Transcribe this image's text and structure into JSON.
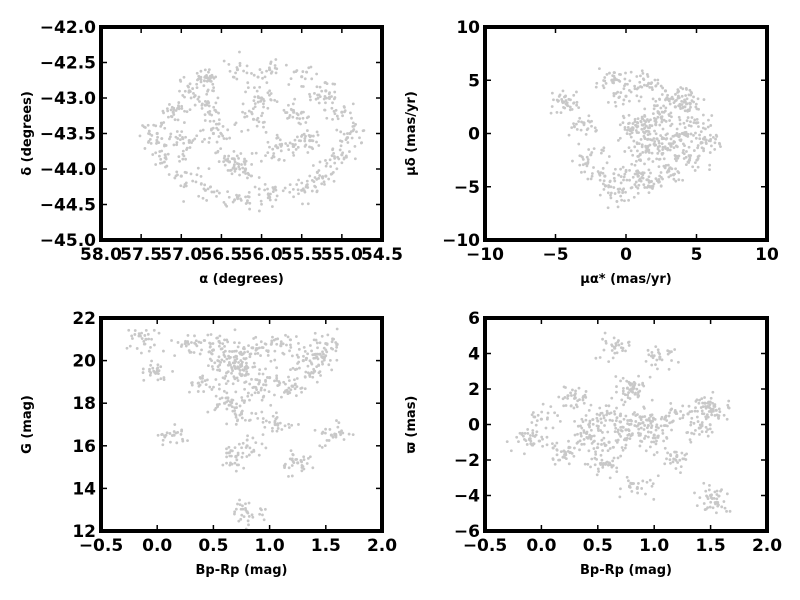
{
  "chart_data": [
    {
      "type": "scatter",
      "xlabel": "α (degrees)",
      "ylabel": "δ (degrees)",
      "xlim": [
        58.0,
        54.5
      ],
      "ylim": [
        -45.0,
        -42.0
      ],
      "xticks": [
        "58.0",
        "57.5",
        "57.0",
        "56.5",
        "56.0",
        "55.5",
        "55.0",
        "54.5"
      ],
      "yticks": [
        "−45.0",
        "−44.5",
        "−44.0",
        "−43.5",
        "−43.0",
        "−42.5",
        "−42.0"
      ],
      "marker_color": "#c8c8c8",
      "series": [
        {
          "points": [
            [
              57.3,
              -43.5
            ],
            [
              57.1,
              -43.2
            ],
            [
              56.9,
              -42.9
            ],
            [
              56.7,
              -42.7
            ],
            [
              56.3,
              -42.6
            ],
            [
              55.9,
              -42.6
            ],
            [
              55.5,
              -42.7
            ],
            [
              55.2,
              -42.9
            ],
            [
              55.0,
              -43.2
            ],
            [
              54.9,
              -43.5
            ],
            [
              55.0,
              -43.8
            ],
            [
              55.2,
              -44.1
            ],
            [
              55.5,
              -44.3
            ],
            [
              55.9,
              -44.4
            ],
            [
              56.3,
              -44.4
            ],
            [
              56.7,
              -44.3
            ],
            [
              57.0,
              -44.1
            ],
            [
              57.2,
              -43.8
            ],
            [
              56.6,
              -43.5
            ],
            [
              56.1,
              -43.3
            ],
            [
              55.8,
              -43.7
            ],
            [
              56.4,
              -43.9
            ],
            [
              55.6,
              -43.2
            ],
            [
              56.9,
              -43.6
            ],
            [
              56.0,
              -43.0
            ],
            [
              56.2,
              -44.0
            ],
            [
              55.4,
              -43.6
            ],
            [
              56.7,
              -43.1
            ]
          ]
        }
      ]
    },
    {
      "type": "scatter",
      "xlabel": "μα* (mas/yr)",
      "ylabel": "μδ (mas/yr)",
      "xlim": [
        -10,
        10
      ],
      "ylim": [
        -10,
        10
      ],
      "xticks": [
        "−10",
        "−5",
        "0",
        "5",
        "10"
      ],
      "yticks": [
        "−10",
        "−5",
        "0",
        "5",
        "10"
      ],
      "marker_color": "#c8c8c8",
      "series": [
        {
          "points": [
            [
              -4.5,
              3.0
            ],
            [
              -3.0,
              1.0
            ],
            [
              -2.5,
              -2.0
            ],
            [
              -1.5,
              -4.0
            ],
            [
              -1.0,
              5.0
            ],
            [
              -0.5,
              -5.5
            ],
            [
              0.0,
              3.5
            ],
            [
              0.5,
              0.5
            ],
            [
              1.0,
              -2.0
            ],
            [
              1.5,
              4.5
            ],
            [
              2.0,
              -1.0
            ],
            [
              2.5,
              1.5
            ],
            [
              3.0,
              -3.5
            ],
            [
              3.5,
              2.5
            ],
            [
              4.0,
              0.0
            ],
            [
              4.5,
              -2.5
            ],
            [
              5.0,
              1.0
            ],
            [
              5.5,
              -0.5
            ],
            [
              2.2,
              -0.5
            ],
            [
              1.2,
              0.8
            ],
            [
              3.2,
              -1.2
            ],
            [
              0.8,
              -3.8
            ],
            [
              2.8,
              4.0
            ],
            [
              4.2,
              3.0
            ],
            [
              1.8,
              -4.5
            ]
          ]
        }
      ]
    },
    {
      "type": "scatter",
      "xlabel": "Bp-Rp (mag)",
      "ylabel": "G (mag)",
      "xlim": [
        -0.5,
        2.0
      ],
      "ylim": [
        12,
        22
      ],
      "xticks": [
        "−0.5",
        "0.0",
        "0.5",
        "1.0",
        "1.5",
        "2.0"
      ],
      "yticks": [
        "12",
        "14",
        "16",
        "18",
        "20",
        "22"
      ],
      "marker_color": "#c8c8c8",
      "series": [
        {
          "points": [
            [
              -0.1,
              21.0
            ],
            [
              0.0,
              19.5
            ],
            [
              0.15,
              16.5
            ],
            [
              0.25,
              20.8
            ],
            [
              0.4,
              19.0
            ],
            [
              0.5,
              20.5
            ],
            [
              0.6,
              18.0
            ],
            [
              0.65,
              19.8
            ],
            [
              0.7,
              20.2
            ],
            [
              0.75,
              17.5
            ],
            [
              0.75,
              19.3
            ],
            [
              0.8,
              16.0
            ],
            [
              0.85,
              20.6
            ],
            [
              0.9,
              18.5
            ],
            [
              1.0,
              19.2
            ],
            [
              1.05,
              17.0
            ],
            [
              1.1,
              20.7
            ],
            [
              1.2,
              18.8
            ],
            [
              1.3,
              20.0
            ],
            [
              1.4,
              19.5
            ],
            [
              1.5,
              20.8
            ],
            [
              1.55,
              16.5
            ],
            [
              0.7,
              15.5
            ],
            [
              0.8,
              12.9
            ],
            [
              1.25,
              15.2
            ],
            [
              0.55,
              20.9
            ],
            [
              1.45,
              20.3
            ]
          ]
        }
      ]
    },
    {
      "type": "scatter",
      "xlabel": "Bp-Rp (mag)",
      "ylabel": "ϖ (mas)",
      "xlim": [
        -0.5,
        2.0
      ],
      "ylim": [
        -6,
        6
      ],
      "xticks": [
        "−0.5",
        "0.0",
        "0.5",
        "1.0",
        "1.5",
        "2.0"
      ],
      "yticks": [
        "−6",
        "−4",
        "−2",
        "0",
        "2",
        "4",
        "6"
      ],
      "marker_color": "#c8c8c8",
      "series": [
        {
          "points": [
            [
              -0.1,
              -0.8
            ],
            [
              0.0,
              0.3
            ],
            [
              0.2,
              -1.5
            ],
            [
              0.3,
              1.5
            ],
            [
              0.4,
              -0.5
            ],
            [
              0.5,
              0.2
            ],
            [
              0.6,
              -1.0
            ],
            [
              0.65,
              4.3
            ],
            [
              0.7,
              0.5
            ],
            [
              0.75,
              -0.3
            ],
            [
              0.8,
              2.0
            ],
            [
              0.85,
              -3.6
            ],
            [
              0.9,
              0.1
            ],
            [
              1.0,
              -0.6
            ],
            [
              1.05,
              3.8
            ],
            [
              1.1,
              0.4
            ],
            [
              1.2,
              -1.8
            ],
            [
              1.3,
              0.6
            ],
            [
              1.4,
              -0.2
            ],
            [
              1.5,
              -4.0
            ],
            [
              1.55,
              -4.4
            ],
            [
              1.55,
              0.8
            ],
            [
              1.45,
              1.2
            ],
            [
              0.55,
              -2.2
            ]
          ]
        }
      ]
    }
  ]
}
